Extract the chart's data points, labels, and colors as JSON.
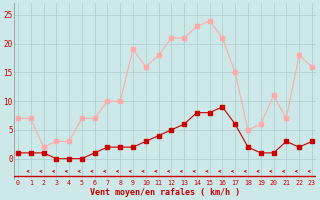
{
  "x": [
    0,
    1,
    2,
    3,
    4,
    5,
    6,
    7,
    8,
    9,
    10,
    11,
    12,
    13,
    14,
    15,
    16,
    17,
    18,
    19,
    20,
    21,
    22,
    23
  ],
  "avg_wind": [
    1,
    1,
    1,
    0,
    0,
    0,
    1,
    2,
    2,
    2,
    3,
    4,
    5,
    6,
    8,
    8,
    9,
    6,
    2,
    1,
    1,
    3,
    2,
    3
  ],
  "gusts": [
    7,
    7,
    2,
    3,
    3,
    7,
    7,
    10,
    10,
    19,
    16,
    18,
    21,
    21,
    23,
    24,
    21,
    15,
    5,
    6,
    11,
    7,
    18,
    16
  ],
  "avg_color": "#cc0000",
  "gust_color": "#ffaaaa",
  "bg_color": "#cce8e8",
  "grid_color": "#aacccc",
  "xlabel": "Vent moyen/en rafales ( km/h )",
  "xlabel_color": "#cc0000",
  "tick_color": "#cc0000",
  "spine_color": "#cc0000",
  "arrow_color": "#cc0000",
  "ylim": [
    -3.5,
    27
  ],
  "xlim": [
    -0.3,
    23.3
  ],
  "yticks": [
    0,
    5,
    10,
    15,
    20,
    25
  ],
  "xticks": [
    0,
    1,
    2,
    3,
    4,
    5,
    6,
    7,
    8,
    9,
    10,
    11,
    12,
    13,
    14,
    15,
    16,
    17,
    18,
    19,
    20,
    21,
    22,
    23
  ]
}
